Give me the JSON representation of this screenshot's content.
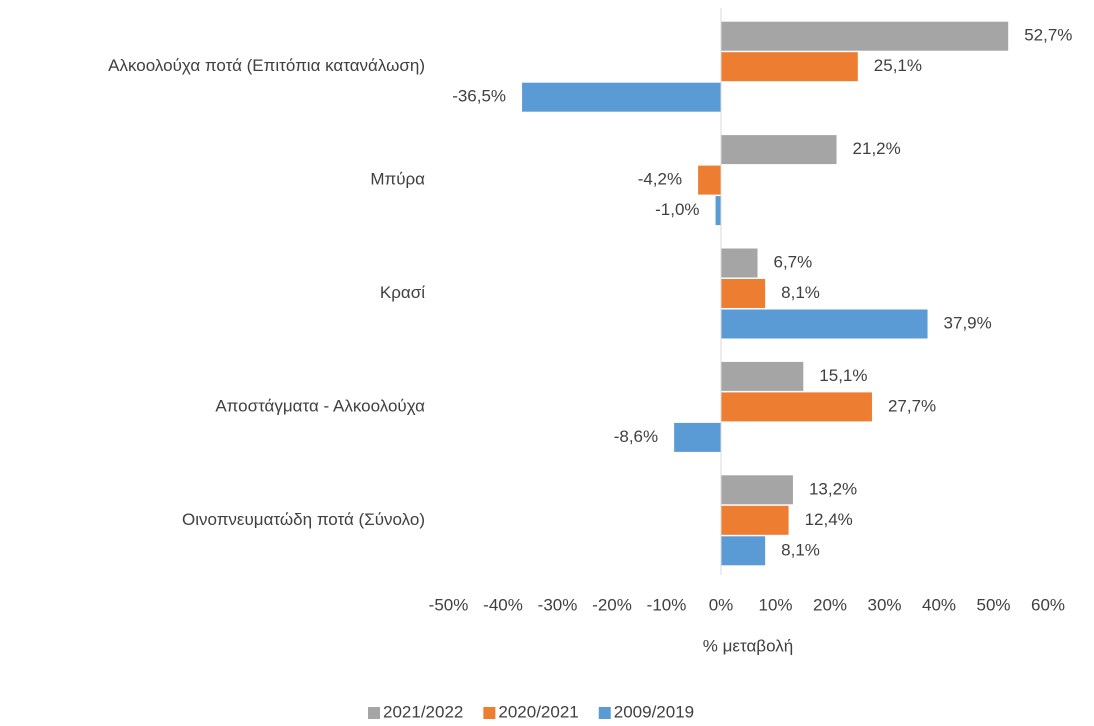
{
  "chart_data": {
    "type": "hbar",
    "x_label": "% μεταβολή",
    "categories": [
      "Αλκοολούχα ποτά (Επιτόπια κατανάλωση)",
      "Μπύρα",
      "Κρασί",
      "Αποστάγματα - Αλκοολούχα",
      "Οινοπνευματώδη ποτά (Σύνολο)"
    ],
    "series": [
      {
        "name": "2021/2022",
        "color": "#a5a5a5",
        "values": [
          52.7,
          21.2,
          6.7,
          15.1,
          13.2
        ],
        "value_labels": [
          "52,7%",
          "21,2%",
          "6,7%",
          "15,1%",
          "13,2%"
        ]
      },
      {
        "name": "2020/2021",
        "color": "#ed7d31",
        "values": [
          25.1,
          -4.2,
          8.1,
          27.7,
          12.4
        ],
        "value_labels": [
          "25,1%",
          "-4,2%",
          "8,1%",
          "27,7%",
          "12,4%"
        ]
      },
      {
        "name": "2009/2019",
        "color": "#5b9bd5",
        "values": [
          -36.5,
          -1.0,
          37.9,
          -8.6,
          8.1
        ],
        "value_labels": [
          "-36,5%",
          "-1,0%",
          "37,9%",
          "-8,6%",
          "8,1%"
        ]
      }
    ],
    "xlim": [
      -50,
      60
    ],
    "xticks": [
      {
        "value": -50,
        "label": "-50%"
      },
      {
        "value": -40,
        "label": "-40%"
      },
      {
        "value": -30,
        "label": "-30%"
      },
      {
        "value": -20,
        "label": "-20%"
      },
      {
        "value": -10,
        "label": "-10%"
      },
      {
        "value": 0,
        "label": "0%"
      },
      {
        "value": 10,
        "label": "10%"
      },
      {
        "value": 20,
        "label": "20%"
      },
      {
        "value": 30,
        "label": "30%"
      },
      {
        "value": 40,
        "label": "40%"
      },
      {
        "value": 50,
        "label": "50%"
      },
      {
        "value": 60,
        "label": "60%"
      }
    ],
    "legend": "bottom"
  }
}
